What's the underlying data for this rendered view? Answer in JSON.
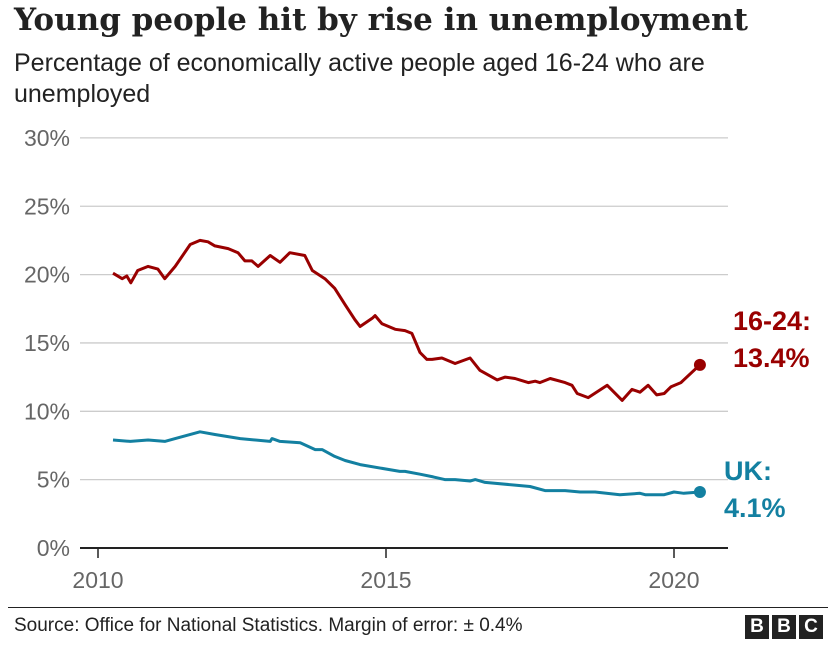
{
  "chart_data": {
    "type": "line",
    "title": "Young people hit by rise in unemployment",
    "subtitle": "Percentage of economically active people aged 16-24 who are unemployed",
    "xlabel": "",
    "ylabel": "",
    "xlim": [
      2010,
      2021
    ],
    "ylim": [
      0,
      30
    ],
    "x_ticks": [
      2010,
      2015,
      2020
    ],
    "x_tick_labels": [
      "2010",
      "2015",
      "2020"
    ],
    "y_ticks": [
      0,
      5,
      10,
      15,
      20,
      25,
      30
    ],
    "y_tick_labels": [
      "0%",
      "5%",
      "10%",
      "15%",
      "20%",
      "25%",
      "30%"
    ],
    "grid": "horizontal",
    "series": [
      {
        "name": "16-24",
        "color": "#990000",
        "end_label": [
          "16-24:",
          "13.4%"
        ],
        "x": [
          2010.26,
          2010.42,
          2010.5,
          2010.57,
          2010.69,
          2010.87,
          2011.04,
          2011.16,
          2011.34,
          2011.6,
          2011.77,
          2011.91,
          2012.03,
          2012.26,
          2012.43,
          2012.55,
          2012.67,
          2012.78,
          2012.99,
          2013.16,
          2013.33,
          2013.59,
          2013.72,
          2013.94,
          2014.11,
          2014.29,
          2014.46,
          2014.55,
          2014.76,
          2014.81,
          2014.93,
          2015.16,
          2015.33,
          2015.45,
          2015.59,
          2015.71,
          2015.8,
          2015.97,
          2016.2,
          2016.46,
          2016.63,
          2016.93,
          2017.07,
          2017.24,
          2017.47,
          2017.59,
          2017.67,
          2017.85,
          2018.11,
          2018.23,
          2018.32,
          2018.51,
          2018.84,
          2019.1,
          2019.27,
          2019.41,
          2019.55,
          2019.7,
          2019.83,
          2019.95,
          2020.12,
          2020.45
        ],
        "y": [
          20.1,
          19.7,
          19.9,
          19.4,
          20.3,
          20.6,
          20.4,
          19.7,
          20.6,
          22.2,
          22.5,
          22.4,
          22.1,
          21.9,
          21.6,
          21.0,
          21.0,
          20.6,
          21.4,
          20.9,
          21.6,
          21.4,
          20.3,
          19.7,
          19.0,
          17.8,
          16.7,
          16.2,
          16.8,
          17.0,
          16.4,
          16.0,
          15.9,
          15.7,
          14.3,
          13.8,
          13.8,
          13.9,
          13.5,
          13.9,
          13.0,
          12.3,
          12.5,
          12.4,
          12.1,
          12.2,
          12.1,
          12.4,
          12.1,
          11.9,
          11.3,
          11.0,
          11.9,
          10.8,
          11.6,
          11.4,
          11.9,
          11.2,
          11.3,
          11.8,
          12.1,
          13.4
        ]
      },
      {
        "name": "UK",
        "color": "#1380A1",
        "end_label": [
          "UK:",
          "4.1%"
        ],
        "x": [
          2010.26,
          2010.56,
          2010.87,
          2011.16,
          2011.34,
          2011.77,
          2012.03,
          2012.47,
          2012.99,
          2013.02,
          2013.16,
          2013.51,
          2013.77,
          2013.89,
          2014.11,
          2014.29,
          2014.55,
          2015.24,
          2015.33,
          2015.59,
          2015.82,
          2016.02,
          2016.2,
          2016.46,
          2016.55,
          2016.72,
          2017.24,
          2017.5,
          2017.76,
          2018.11,
          2018.37,
          2018.63,
          2019.06,
          2019.41,
          2019.5,
          2019.83,
          2020.0,
          2020.17,
          2020.45
        ],
        "y": [
          7.9,
          7.8,
          7.9,
          7.8,
          8.0,
          8.5,
          8.3,
          8.0,
          7.8,
          8.0,
          7.8,
          7.7,
          7.2,
          7.2,
          6.7,
          6.4,
          6.1,
          5.6,
          5.6,
          5.4,
          5.2,
          5.0,
          5.0,
          4.9,
          5.0,
          4.8,
          4.6,
          4.5,
          4.2,
          4.2,
          4.1,
          4.1,
          3.9,
          4.0,
          3.9,
          3.9,
          4.1,
          4.0,
          4.1
        ]
      }
    ]
  },
  "footer": {
    "source": "Source: Office for National Statistics. Margin of error: ± 0.4%",
    "logo": "BBC"
  }
}
